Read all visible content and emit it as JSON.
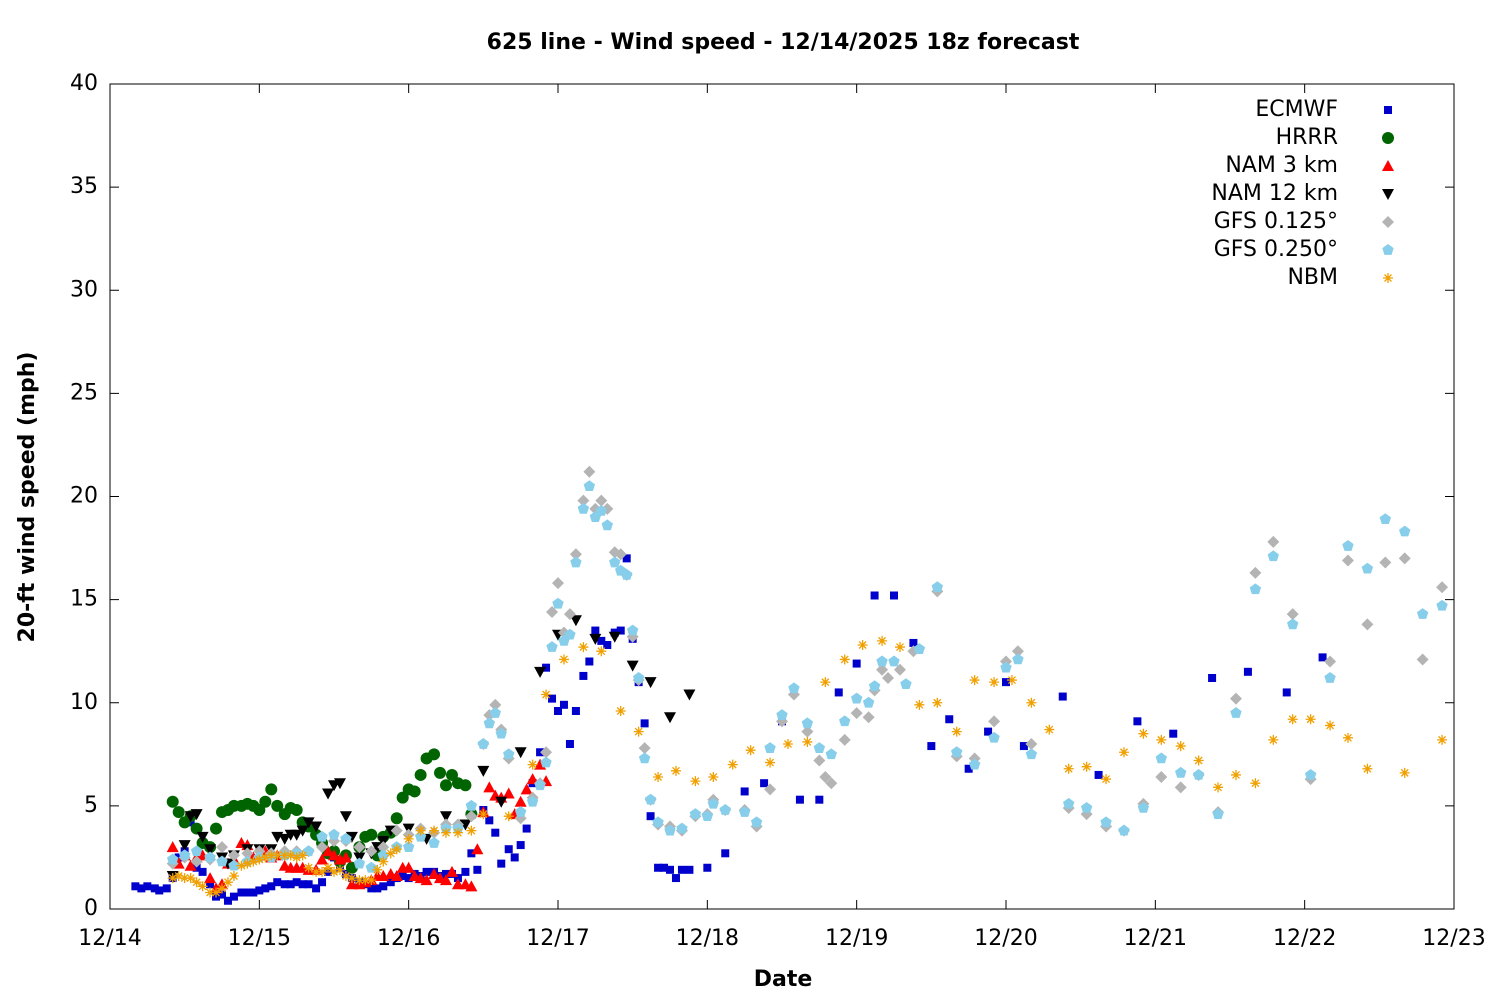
{
  "chart_data": {
    "type": "scatter",
    "title": "625 line - Wind speed - 12/14/2025 18z forecast",
    "xlabel": "Date",
    "ylabel": "20-ft wind speed (mph)",
    "xlim": [
      0,
      9
    ],
    "ylim": [
      0,
      40
    ],
    "xticks": [
      {
        "value": 0,
        "label": "12/14"
      },
      {
        "value": 1,
        "label": "12/15"
      },
      {
        "value": 2,
        "label": "12/16"
      },
      {
        "value": 3,
        "label": "12/17"
      },
      {
        "value": 4,
        "label": "12/18"
      },
      {
        "value": 5,
        "label": "12/19"
      },
      {
        "value": 6,
        "label": "12/20"
      },
      {
        "value": 7,
        "label": "12/21"
      },
      {
        "value": 8,
        "label": "12/22"
      },
      {
        "value": 9,
        "label": "12/23"
      }
    ],
    "yticks": [
      0,
      5,
      10,
      15,
      20,
      25,
      30,
      35,
      40
    ],
    "grid": false,
    "legend": "top-right",
    "series": [
      {
        "name": "ECMWF",
        "color": "#0000cc",
        "marker": "square",
        "x": [
          0.17,
          0.21,
          0.25,
          0.3,
          0.33,
          0.38,
          0.42,
          0.46,
          0.5,
          0.54,
          0.58,
          0.62,
          0.67,
          0.71,
          0.75,
          0.79,
          0.83,
          0.88,
          0.92,
          0.96,
          1.0,
          1.04,
          1.08,
          1.12,
          1.17,
          1.21,
          1.25,
          1.29,
          1.33,
          1.38,
          1.42,
          1.46,
          1.5,
          1.54,
          1.58,
          1.62,
          1.67,
          1.71,
          1.75,
          1.79,
          1.83,
          1.88,
          1.92,
          1.96,
          2.0,
          2.04,
          2.08,
          2.12,
          2.17,
          2.21,
          2.25,
          2.29,
          2.33,
          2.38,
          2.42,
          2.46,
          2.5,
          2.54,
          2.58,
          2.62,
          2.67,
          2.71,
          2.75,
          2.79,
          2.83,
          2.88,
          2.92,
          2.96,
          3.0,
          3.04,
          3.08,
          3.12,
          3.17,
          3.21,
          3.25,
          3.29,
          3.33,
          3.38,
          3.42,
          3.46,
          3.5,
          3.54,
          3.58,
          3.62,
          3.67,
          3.71,
          3.75,
          3.79,
          3.83,
          3.88,
          4.0,
          4.12,
          4.25,
          4.38,
          4.5,
          4.62,
          4.75,
          4.88,
          5.0,
          5.12,
          5.25,
          5.38,
          5.5,
          5.62,
          5.75,
          5.88,
          6.0,
          6.12,
          6.38,
          6.62,
          6.88,
          7.12,
          7.38,
          7.62,
          7.88,
          8.12
        ],
        "values": [
          1.1,
          1.0,
          1.1,
          1.0,
          0.9,
          1.0,
          1.5,
          2.5,
          2.8,
          4.2,
          2.0,
          1.8,
          1.2,
          0.6,
          0.7,
          0.4,
          0.6,
          0.8,
          0.8,
          0.8,
          0.9,
          1.0,
          1.1,
          1.3,
          1.2,
          1.2,
          1.3,
          1.2,
          1.2,
          1.0,
          1.3,
          1.8,
          2.5,
          2.0,
          1.7,
          1.5,
          1.3,
          1.2,
          1.0,
          1.0,
          1.1,
          1.3,
          1.5,
          1.6,
          1.5,
          1.7,
          1.6,
          1.8,
          1.8,
          1.6,
          1.7,
          1.7,
          1.5,
          1.8,
          2.7,
          1.9,
          4.8,
          4.3,
          3.7,
          2.2,
          2.9,
          2.5,
          3.1,
          3.9,
          6.1,
          7.6,
          11.7,
          10.2,
          9.6,
          9.9,
          8.0,
          9.6,
          11.3,
          12.0,
          13.5,
          13.0,
          12.8,
          13.4,
          13.5,
          17.0,
          13.1,
          11.0,
          9.0,
          4.5,
          2.0,
          2.0,
          1.9,
          1.5,
          1.9,
          1.9,
          2.0,
          2.7,
          5.7,
          6.1,
          9.1,
          5.3,
          5.3,
          10.5,
          11.9,
          15.2,
          15.2,
          12.9,
          7.9,
          9.2,
          6.8,
          8.6,
          11.0,
          7.9,
          10.3,
          6.5,
          9.1,
          8.5,
          11.2,
          11.5,
          10.5,
          12.2
        ]
      },
      {
        "name": "HRRR",
        "color": "#006400",
        "marker": "circle",
        "x": [
          0.42,
          0.46,
          0.5,
          0.54,
          0.58,
          0.62,
          0.67,
          0.71,
          0.75,
          0.79,
          0.83,
          0.88,
          0.92,
          0.96,
          1.0,
          1.04,
          1.08,
          1.12,
          1.17,
          1.21,
          1.25,
          1.29,
          1.33,
          1.38,
          1.42,
          1.46,
          1.5,
          1.54,
          1.58,
          1.62,
          1.67,
          1.71,
          1.75,
          1.79,
          1.83,
          1.88,
          1.92,
          1.96,
          2.0,
          2.04,
          2.08,
          2.12,
          2.17,
          2.21,
          2.25,
          2.29,
          2.33,
          2.38,
          2.42
        ],
        "values": [
          5.2,
          4.7,
          4.2,
          4.5,
          3.9,
          3.2,
          3.0,
          3.9,
          4.7,
          4.8,
          5.0,
          5.0,
          5.1,
          5.0,
          4.8,
          5.2,
          5.8,
          5.0,
          4.6,
          4.9,
          4.8,
          4.2,
          4.0,
          3.6,
          3.2,
          2.7,
          2.8,
          2.3,
          2.6,
          2.0,
          3.0,
          3.5,
          3.6,
          2.6,
          3.5,
          3.7,
          4.4,
          5.4,
          5.8,
          5.7,
          6.5,
          7.3,
          7.5,
          6.6,
          6.0,
          6.5,
          6.1,
          6.0,
          4.6
        ]
      },
      {
        "name": "NAM 3 km",
        "color": "#ff0000",
        "marker": "triangle-up",
        "x": [
          0.42,
          0.46,
          0.5,
          0.54,
          0.58,
          0.62,
          0.67,
          0.71,
          0.75,
          0.79,
          0.83,
          0.88,
          0.92,
          0.96,
          1.0,
          1.04,
          1.08,
          1.12,
          1.17,
          1.21,
          1.25,
          1.29,
          1.33,
          1.38,
          1.42,
          1.46,
          1.5,
          1.54,
          1.58,
          1.62,
          1.67,
          1.71,
          1.75,
          1.79,
          1.83,
          1.88,
          1.92,
          1.96,
          2.0,
          2.04,
          2.08,
          2.12,
          2.17,
          2.21,
          2.25,
          2.29,
          2.33,
          2.38,
          2.42,
          2.46,
          2.5,
          2.54,
          2.58,
          2.62,
          2.67,
          2.71,
          2.75,
          2.79,
          2.83,
          2.88,
          2.92
        ],
        "values": [
          3.0,
          2.2,
          2.6,
          2.1,
          2.5,
          2.6,
          1.5,
          1.0,
          1.2,
          2.2,
          2.4,
          3.2,
          3.1,
          2.5,
          2.6,
          2.8,
          2.5,
          2.6,
          2.1,
          2.0,
          2.0,
          2.0,
          1.9,
          1.9,
          2.4,
          2.8,
          2.6,
          2.4,
          2.5,
          1.2,
          1.2,
          1.3,
          1.4,
          1.6,
          1.6,
          1.7,
          1.6,
          2.0,
          2.0,
          1.6,
          1.5,
          1.4,
          1.7,
          1.5,
          1.4,
          1.8,
          1.2,
          1.2,
          1.1,
          2.9,
          4.7,
          5.9,
          5.5,
          5.4,
          5.6,
          4.6,
          5.2,
          5.8,
          6.3,
          7.0,
          6.2
        ]
      },
      {
        "name": "NAM 12 km",
        "color": "#000000",
        "marker": "triangle-down",
        "x": [
          0.42,
          0.5,
          0.54,
          0.58,
          0.62,
          0.67,
          0.75,
          0.79,
          0.83,
          0.92,
          1.0,
          1.08,
          1.12,
          1.17,
          1.21,
          1.25,
          1.29,
          1.33,
          1.38,
          1.46,
          1.5,
          1.54,
          1.58,
          1.62,
          1.67,
          1.75,
          1.79,
          1.83,
          1.88,
          2.0,
          2.12,
          2.25,
          2.38,
          2.5,
          2.62,
          2.75,
          2.88,
          3.0,
          3.12,
          3.25,
          3.38,
          3.5,
          3.62,
          3.75,
          3.88
        ],
        "values": [
          1.6,
          3.1,
          4.5,
          4.6,
          3.5,
          2.9,
          2.5,
          2.2,
          2.6,
          2.9,
          2.9,
          2.9,
          3.5,
          3.4,
          3.6,
          3.6,
          3.8,
          4.2,
          4.0,
          5.6,
          6.0,
          6.1,
          4.5,
          3.5,
          2.5,
          2.7,
          3.0,
          3.3,
          3.8,
          3.9,
          3.4,
          4.5,
          4.1,
          6.7,
          5.2,
          7.6,
          11.5,
          13.3,
          14.0,
          13.1,
          13.2,
          11.8,
          11.0,
          9.3,
          10.4
        ]
      },
      {
        "name": "GFS 0.125°",
        "color": "#b4b4b4",
        "marker": "diamond",
        "x": [
          0.42,
          0.5,
          0.58,
          0.67,
          0.75,
          0.83,
          0.92,
          1.0,
          1.08,
          1.17,
          1.25,
          1.33,
          1.42,
          1.5,
          1.58,
          1.67,
          1.75,
          1.83,
          1.92,
          2.0,
          2.08,
          2.17,
          2.25,
          2.33,
          2.42,
          2.5,
          2.54,
          2.58,
          2.62,
          2.67,
          2.75,
          2.83,
          2.88,
          2.92,
          2.96,
          3.0,
          3.04,
          3.08,
          3.12,
          3.17,
          3.21,
          3.25,
          3.29,
          3.33,
          3.38,
          3.42,
          3.46,
          3.5,
          3.54,
          3.58,
          3.62,
          3.67,
          3.75,
          3.83,
          3.92,
          4.0,
          4.04,
          4.12,
          4.25,
          4.33,
          4.42,
          4.5,
          4.58,
          4.67,
          4.75,
          4.79,
          4.83,
          4.92,
          5.0,
          5.08,
          5.12,
          5.17,
          5.21,
          5.29,
          5.38,
          5.54,
          5.67,
          5.79,
          5.92,
          6.0,
          6.08,
          6.17,
          6.42,
          6.54,
          6.67,
          6.79,
          6.92,
          7.04,
          7.17,
          7.29,
          7.42,
          7.54,
          7.67,
          7.79,
          7.92,
          8.04,
          8.17,
          8.29,
          8.42,
          8.54,
          8.67,
          8.79,
          8.92
        ],
        "values": [
          2.2,
          2.5,
          2.3,
          2.4,
          3.0,
          2.6,
          2.7,
          2.8,
          2.7,
          2.8,
          2.8,
          2.8,
          3.0,
          3.3,
          3.3,
          3.0,
          2.8,
          3.0,
          3.8,
          3.6,
          3.9,
          3.7,
          4.1,
          4.1,
          4.5,
          8.0,
          9.4,
          9.9,
          8.7,
          7.3,
          4.4,
          5.4,
          6.1,
          7.6,
          14.4,
          15.8,
          13.4,
          14.3,
          17.2,
          19.8,
          21.2,
          19.4,
          19.8,
          19.4,
          17.3,
          17.2,
          16.2,
          13.2,
          11.1,
          7.8,
          5.3,
          4.1,
          4.0,
          3.8,
          4.5,
          4.6,
          5.3,
          4.8,
          4.8,
          4.0,
          5.8,
          9.1,
          10.4,
          8.6,
          7.2,
          6.4,
          6.1,
          8.2,
          9.5,
          9.3,
          10.6,
          11.6,
          11.2,
          11.6,
          12.5,
          15.4,
          7.4,
          7.3,
          9.1,
          12.0,
          12.5,
          8.0,
          4.9,
          4.6,
          4.0,
          3.8,
          5.1,
          6.4,
          5.9,
          6.5,
          4.7,
          10.2,
          16.3,
          17.8,
          14.3,
          6.3,
          12.0,
          16.9,
          13.8,
          16.8,
          17.0,
          12.1,
          15.6
        ]
      },
      {
        "name": "GFS 0.250°",
        "color": "#87ceeb",
        "marker": "pentagon",
        "x": [
          0.42,
          0.5,
          0.58,
          0.67,
          0.75,
          0.83,
          0.92,
          1.0,
          1.08,
          1.17,
          1.25,
          1.33,
          1.42,
          1.5,
          1.58,
          1.67,
          1.75,
          1.83,
          1.92,
          2.0,
          2.08,
          2.17,
          2.25,
          2.33,
          2.42,
          2.5,
          2.54,
          2.58,
          2.62,
          2.67,
          2.75,
          2.83,
          2.88,
          2.92,
          2.96,
          3.0,
          3.04,
          3.08,
          3.12,
          3.17,
          3.21,
          3.25,
          3.29,
          3.33,
          3.38,
          3.42,
          3.46,
          3.5,
          3.54,
          3.58,
          3.62,
          3.67,
          3.75,
          3.83,
          3.92,
          4.0,
          4.04,
          4.12,
          4.25,
          4.33,
          4.42,
          4.5,
          4.58,
          4.67,
          4.75,
          4.83,
          4.92,
          5.0,
          5.08,
          5.12,
          5.17,
          5.25,
          5.33,
          5.42,
          5.54,
          5.67,
          5.79,
          5.92,
          6.0,
          6.08,
          6.17,
          6.42,
          6.54,
          6.67,
          6.79,
          6.92,
          7.04,
          7.17,
          7.29,
          7.42,
          7.54,
          7.67,
          7.79,
          7.92,
          8.04,
          8.17,
          8.29,
          8.42,
          8.54,
          8.67,
          8.79,
          8.92
        ],
        "values": [
          2.4,
          2.6,
          2.8,
          2.5,
          2.3,
          2.1,
          2.3,
          2.5,
          2.5,
          2.6,
          2.7,
          2.8,
          3.5,
          3.6,
          3.4,
          2.2,
          2.0,
          2.6,
          3.0,
          3.0,
          3.5,
          3.2,
          3.9,
          3.9,
          5.0,
          8.0,
          9.0,
          9.5,
          8.5,
          7.5,
          4.7,
          5.2,
          6.0,
          7.1,
          12.7,
          14.8,
          13.0,
          13.3,
          16.8,
          19.4,
          20.5,
          19.0,
          19.3,
          18.6,
          16.8,
          16.4,
          16.2,
          13.5,
          11.2,
          7.3,
          5.3,
          4.2,
          3.8,
          3.9,
          4.6,
          4.5,
          5.1,
          4.8,
          4.7,
          4.2,
          7.8,
          9.4,
          10.7,
          9.0,
          7.8,
          7.5,
          9.1,
          10.2,
          10.0,
          10.8,
          12.0,
          12.0,
          10.9,
          12.6,
          15.6,
          7.6,
          7.0,
          8.3,
          11.7,
          12.1,
          7.5,
          5.1,
          4.9,
          4.2,
          3.8,
          4.9,
          7.3,
          6.6,
          6.5,
          4.6,
          9.5,
          15.5,
          17.1,
          13.8,
          6.5,
          11.2,
          17.6,
          16.5,
          18.9,
          18.3,
          14.3,
          14.7
        ]
      },
      {
        "name": "NBM",
        "color": "#f0a000",
        "marker": "asterisk",
        "x": [
          0.42,
          0.46,
          0.5,
          0.54,
          0.58,
          0.62,
          0.67,
          0.71,
          0.75,
          0.79,
          0.83,
          0.88,
          0.92,
          0.96,
          1.0,
          1.04,
          1.08,
          1.12,
          1.17,
          1.21,
          1.25,
          1.29,
          1.33,
          1.38,
          1.42,
          1.46,
          1.5,
          1.54,
          1.58,
          1.62,
          1.67,
          1.71,
          1.75,
          1.79,
          1.83,
          1.88,
          1.92,
          2.0,
          2.08,
          2.17,
          2.25,
          2.33,
          2.42,
          2.5,
          2.67,
          2.83,
          2.92,
          3.04,
          3.17,
          3.29,
          3.42,
          3.54,
          3.67,
          3.79,
          3.92,
          4.04,
          4.17,
          4.29,
          4.42,
          4.54,
          4.67,
          4.79,
          4.92,
          5.04,
          5.17,
          5.29,
          5.42,
          5.54,
          5.67,
          5.79,
          5.92,
          6.04,
          6.17,
          6.29,
          6.42,
          6.54,
          6.67,
          6.79,
          6.92,
          7.04,
          7.17,
          7.29,
          7.42,
          7.54,
          7.67,
          7.79,
          7.92,
          8.04,
          8.17,
          8.29,
          8.42,
          8.67,
          8.92
        ],
        "values": [
          1.5,
          1.6,
          1.5,
          1.5,
          1.3,
          1.1,
          0.8,
          0.8,
          1.0,
          1.3,
          1.6,
          2.1,
          2.2,
          2.3,
          2.4,
          2.5,
          2.6,
          2.6,
          2.6,
          2.6,
          2.5,
          2.6,
          2.0,
          1.8,
          1.8,
          2.0,
          1.8,
          1.9,
          1.6,
          1.5,
          1.4,
          1.4,
          1.4,
          1.9,
          2.3,
          2.7,
          2.9,
          3.4,
          3.8,
          3.8,
          3.7,
          3.7,
          3.8,
          4.6,
          4.5,
          7.0,
          10.4,
          12.1,
          12.7,
          12.5,
          9.6,
          8.6,
          6.4,
          6.7,
          6.2,
          6.4,
          7.0,
          7.7,
          7.1,
          8.0,
          8.1,
          11.0,
          12.1,
          12.8,
          13.0,
          12.7,
          9.9,
          10.0,
          8.6,
          11.1,
          11.0,
          11.1,
          10.0,
          8.7,
          6.8,
          6.9,
          6.3,
          7.6,
          8.5,
          8.2,
          7.9,
          7.2,
          5.9,
          6.5,
          6.1,
          8.2,
          9.2,
          9.2,
          8.9,
          8.3,
          6.8,
          6.6,
          8.2
        ]
      }
    ]
  }
}
